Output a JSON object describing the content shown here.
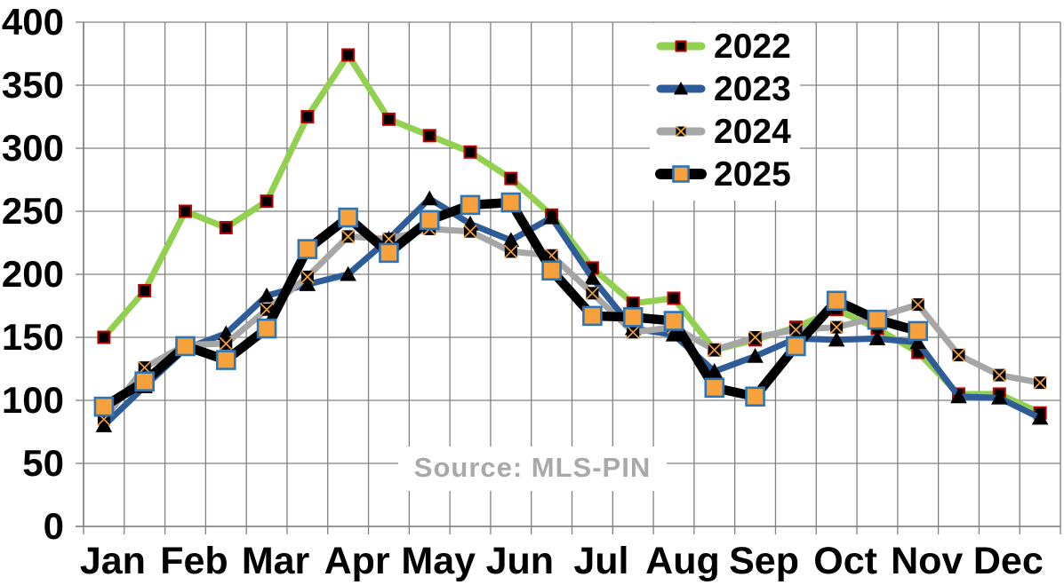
{
  "source_note": "Source: MLS-PIN",
  "chart_data": {
    "type": "line",
    "title": "",
    "xlabel": "",
    "ylabel": "",
    "ylim": [
      0,
      400
    ],
    "y_ticks": [
      0,
      50,
      100,
      150,
      200,
      250,
      300,
      350,
      400
    ],
    "grid": true,
    "legend_position": "top-right",
    "points_per_month": 2,
    "month_labels": [
      "Jan",
      "Feb",
      "Mar",
      "Apr",
      "May",
      "Jun",
      "Jul",
      "Aug",
      "Sep",
      "Oct",
      "Nov",
      "Dec"
    ],
    "categories": [
      "Jan-1",
      "Jan-2",
      "Feb-1",
      "Feb-2",
      "Mar-1",
      "Mar-2",
      "Apr-1",
      "Apr-2",
      "May-1",
      "May-2",
      "Jun-1",
      "Jun-2",
      "Jul-1",
      "Jul-2",
      "Aug-1",
      "Aug-2",
      "Sep-1",
      "Sep-2",
      "Oct-1",
      "Oct-2",
      "Nov-1",
      "Nov-2",
      "Dec-1",
      "Dec-2"
    ],
    "series": [
      {
        "name": "2022",
        "color": "#92d050",
        "marker": "black-square-red-outline",
        "values": [
          150,
          187,
          250,
          237,
          258,
          325,
          374,
          323,
          310,
          297,
          276,
          247,
          205,
          177,
          181,
          140,
          148,
          158,
          172,
          157,
          138,
          105,
          105,
          90
        ]
      },
      {
        "name": "2023",
        "color": "#2e5c99",
        "marker": "black-triangle",
        "values": [
          80,
          111,
          141,
          153,
          183,
          192,
          200,
          228,
          260,
          240,
          227,
          245,
          197,
          157,
          152,
          123,
          135,
          149,
          148,
          149,
          146,
          103,
          102,
          86
        ]
      },
      {
        "name": "2024",
        "color": "#a6a6a6",
        "marker": "black-square-orange-x",
        "values": [
          85,
          126,
          144,
          145,
          172,
          198,
          230,
          228,
          236,
          234,
          218,
          215,
          185,
          154,
          158,
          140,
          150,
          156,
          158,
          166,
          176,
          136,
          120,
          114
        ]
      },
      {
        "name": "2025",
        "color": "#000000",
        "marker": "orange-square-blue-outline",
        "values": [
          95,
          115,
          143,
          132,
          157,
          220,
          245,
          217,
          243,
          255,
          257,
          203,
          167,
          166,
          163,
          110,
          103,
          143,
          179,
          164,
          155
        ]
      }
    ],
    "marker_colors": {
      "red_outline": "#c00000",
      "orange_fill": "#f6a13b",
      "blue_outline": "#2e75b6",
      "black": "#000000"
    },
    "grid_color": "#808080"
  }
}
